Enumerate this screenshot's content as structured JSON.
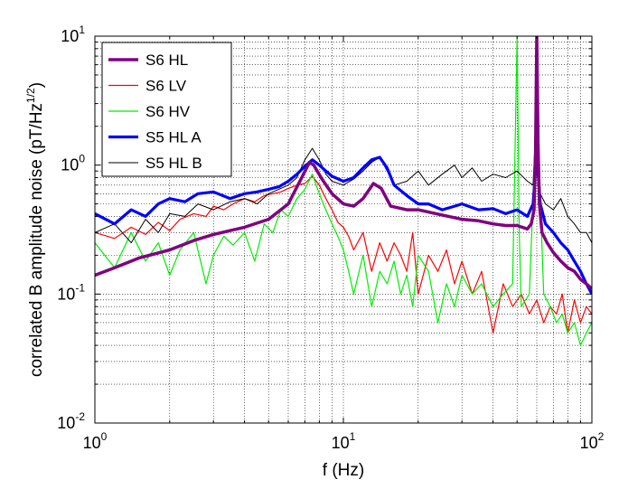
{
  "chart_data": {
    "type": "line",
    "xlabel": "f (Hz)",
    "ylabel_main": "correlated B amplitude noise (pT/Hz",
    "ylabel_sup": "1/2",
    "ylabel_close": ")",
    "xscale": "log",
    "yscale": "log",
    "xlim": [
      1,
      100
    ],
    "ylim": [
      0.01,
      10
    ],
    "grid": true,
    "legend_position": "top-left",
    "x_ticks": [
      {
        "base": "10",
        "exp": "0",
        "value": 1
      },
      {
        "base": "10",
        "exp": "1",
        "value": 10
      },
      {
        "base": "10",
        "exp": "2",
        "value": 100
      }
    ],
    "y_ticks": [
      {
        "base": "10",
        "exp": "-2",
        "value": 0.01
      },
      {
        "base": "10",
        "exp": "-1",
        "value": 0.1
      },
      {
        "base": "10",
        "exp": "0",
        "value": 1
      },
      {
        "base": "10",
        "exp": "1",
        "value": 10
      }
    ],
    "series": [
      {
        "name": "S6 HL",
        "color": "#800080",
        "width": 3.5,
        "x": [
          1.0,
          1.2,
          1.5,
          2.0,
          2.5,
          3.0,
          4.0,
          5.0,
          6.0,
          6.8,
          7.3,
          7.6,
          8.2,
          9.0,
          10.0,
          11.0,
          12.0,
          13.2,
          14.2,
          15.5,
          18.0,
          20.0,
          25.0,
          30.0,
          35.0,
          40.0,
          45.0,
          50.0,
          55.0,
          57.0,
          58.5,
          59.3,
          60.0,
          60.7,
          61.5,
          63.0,
          66.0,
          70.0,
          75.0,
          80.0,
          85.0,
          90.0,
          95.0,
          100.0
        ],
        "y": [
          0.14,
          0.16,
          0.19,
          0.22,
          0.26,
          0.29,
          0.33,
          0.38,
          0.5,
          0.8,
          1.05,
          1.0,
          0.78,
          0.6,
          0.5,
          0.48,
          0.55,
          0.72,
          0.66,
          0.48,
          0.45,
          0.45,
          0.41,
          0.38,
          0.37,
          0.35,
          0.34,
          0.34,
          0.32,
          0.35,
          0.45,
          1.2,
          10.0,
          1.5,
          0.5,
          0.3,
          0.25,
          0.21,
          0.18,
          0.16,
          0.15,
          0.13,
          0.12,
          0.11
        ]
      },
      {
        "name": "S6 LV",
        "color": "#ff0000",
        "width": 1.2,
        "x": [
          1.0,
          1.2,
          1.4,
          1.6,
          1.8,
          2.0,
          2.2,
          2.5,
          2.8,
          3.0,
          3.3,
          3.6,
          4.0,
          4.4,
          4.8,
          5.2,
          5.6,
          6.0,
          6.5,
          7.0,
          7.5,
          8.0,
          8.5,
          9.0,
          9.5,
          10.0,
          10.5,
          11.0,
          12.0,
          13.0,
          14.0,
          15.0,
          16.0,
          17.0,
          18.0,
          19.0,
          20.0,
          22.0,
          24.0,
          26.0,
          28.0,
          30.0,
          33.0,
          36.0,
          40.0,
          44.0,
          48.0,
          52.0,
          56.0,
          60.0,
          64.0,
          68.0,
          72.0,
          76.0,
          80.0,
          85.0,
          90.0,
          95.0,
          100.0
        ],
        "y": [
          0.3,
          0.27,
          0.33,
          0.29,
          0.36,
          0.31,
          0.38,
          0.42,
          0.4,
          0.48,
          0.45,
          0.5,
          0.55,
          0.52,
          0.58,
          0.6,
          0.62,
          0.66,
          0.7,
          0.72,
          0.82,
          0.7,
          0.55,
          0.45,
          0.36,
          0.33,
          0.28,
          0.22,
          0.3,
          0.15,
          0.25,
          0.18,
          0.25,
          0.2,
          0.15,
          0.3,
          0.1,
          0.2,
          0.15,
          0.22,
          0.12,
          0.18,
          0.1,
          0.15,
          0.05,
          0.12,
          0.08,
          0.1,
          0.07,
          0.09,
          0.06,
          0.08,
          0.07,
          0.1,
          0.05,
          0.09,
          0.06,
          0.08,
          0.07
        ]
      },
      {
        "name": "S6 HV",
        "color": "#00ee00",
        "width": 1.2,
        "x": [
          1.0,
          1.2,
          1.4,
          1.6,
          1.8,
          2.0,
          2.2,
          2.5,
          2.8,
          3.0,
          3.3,
          3.6,
          4.0,
          4.4,
          4.8,
          5.2,
          5.6,
          6.0,
          6.5,
          7.0,
          7.5,
          8.0,
          8.5,
          9.0,
          9.5,
          10.0,
          10.5,
          11.0,
          12.0,
          13.0,
          14.0,
          15.0,
          16.0,
          17.0,
          18.0,
          19.0,
          20.0,
          22.0,
          24.0,
          26.0,
          28.0,
          30.0,
          33.0,
          36.0,
          40.0,
          44.0,
          48.0,
          50.0,
          51.0,
          52.0,
          56.0,
          60.0,
          64.0,
          68.0,
          72.0,
          76.0,
          80.0,
          85.0,
          90.0,
          95.0,
          100.0
        ],
        "y": [
          0.25,
          0.16,
          0.3,
          0.18,
          0.25,
          0.14,
          0.22,
          0.3,
          0.12,
          0.2,
          0.28,
          0.24,
          0.3,
          0.18,
          0.35,
          0.3,
          0.45,
          0.4,
          0.55,
          0.65,
          0.85,
          0.6,
          0.45,
          0.35,
          0.28,
          0.22,
          0.15,
          0.1,
          0.2,
          0.08,
          0.15,
          0.12,
          0.18,
          0.1,
          0.14,
          0.08,
          0.2,
          0.15,
          0.06,
          0.12,
          0.08,
          0.14,
          0.1,
          0.12,
          0.08,
          0.1,
          0.12,
          10.0,
          0.3,
          0.08,
          0.1,
          3.0,
          0.1,
          0.08,
          0.06,
          0.07,
          0.05,
          0.06,
          0.04,
          0.05,
          0.06
        ]
      },
      {
        "name": "S5 HL A",
        "color": "#0000ff",
        "width": 3.2,
        "x": [
          1.0,
          1.2,
          1.4,
          1.6,
          1.8,
          2.0,
          2.3,
          2.6,
          3.0,
          3.5,
          4.0,
          4.5,
          5.0,
          5.5,
          6.0,
          6.5,
          7.0,
          7.5,
          8.0,
          8.5,
          9.0,
          10.0,
          11.0,
          12.0,
          13.0,
          14.0,
          15.0,
          16.0,
          18.0,
          20.0,
          22.0,
          25.0,
          28.0,
          30.0,
          35.0,
          40.0,
          45.0,
          50.0,
          55.0,
          58.0,
          60.0,
          62.0,
          65.0,
          70.0,
          75.0,
          80.0,
          85.0,
          90.0,
          95.0,
          100.0
        ],
        "y": [
          0.42,
          0.35,
          0.45,
          0.4,
          0.5,
          0.55,
          0.52,
          0.6,
          0.62,
          0.55,
          0.6,
          0.62,
          0.65,
          0.68,
          0.75,
          0.85,
          0.98,
          1.1,
          1.0,
          0.9,
          0.82,
          0.75,
          0.8,
          0.95,
          1.1,
          1.15,
          0.95,
          0.7,
          0.58,
          0.5,
          0.5,
          0.45,
          0.48,
          0.5,
          0.45,
          0.46,
          0.42,
          0.45,
          0.4,
          0.5,
          1.2,
          0.5,
          0.35,
          0.3,
          0.25,
          0.22,
          0.18,
          0.15,
          0.12,
          0.1
        ]
      },
      {
        "name": "S5 HL B",
        "color": "#000000",
        "width": 1.0,
        "x": [
          1.0,
          1.2,
          1.4,
          1.6,
          1.8,
          2.0,
          2.3,
          2.6,
          3.0,
          3.5,
          4.0,
          4.5,
          5.0,
          5.5,
          6.0,
          6.5,
          7.0,
          7.5,
          8.0,
          8.5,
          9.0,
          10.0,
          11.0,
          12.0,
          13.0,
          14.0,
          15.0,
          16.0,
          18.0,
          20.0,
          22.0,
          25.0,
          28.0,
          30.0,
          33.0,
          36.0,
          40.0,
          45.0,
          50.0,
          55.0,
          58.0,
          60.0,
          62.0,
          65.0,
          70.0,
          75.0,
          80.0,
          85.0,
          90.0,
          95.0,
          100.0
        ],
        "y": [
          0.3,
          0.35,
          0.25,
          0.38,
          0.3,
          0.42,
          0.4,
          0.5,
          0.45,
          0.52,
          0.55,
          0.5,
          0.6,
          0.65,
          0.7,
          0.8,
          1.1,
          1.35,
          1.1,
          0.85,
          0.75,
          0.7,
          0.78,
          0.9,
          1.05,
          1.15,
          0.9,
          0.7,
          0.75,
          0.9,
          0.7,
          0.85,
          1.0,
          0.8,
          0.95,
          0.75,
          0.85,
          0.8,
          0.9,
          0.75,
          0.7,
          3.0,
          0.6,
          0.5,
          0.45,
          0.55,
          0.4,
          0.35,
          0.3,
          0.3,
          0.25
        ]
      }
    ]
  }
}
